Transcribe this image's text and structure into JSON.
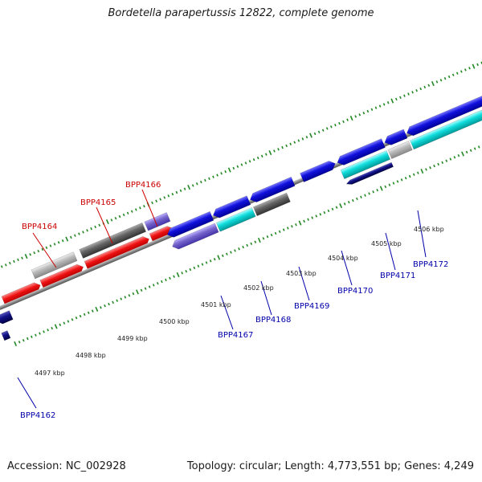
{
  "title": "Bordetella parapertussis 12822, complete genome",
  "footer": {
    "accession": "Accession: NC_002928",
    "summary": "Topology: circular; Length: 4,773,551 bp; Genes: 4,249"
  },
  "ticks": [
    "4497 kbp",
    "4498 kbp",
    "4499 kbp",
    "4500 kbp",
    "4501 kbp",
    "4502 kbp",
    "4503 kbp",
    "4504 kbp",
    "4505 kbp",
    "4506 kbp"
  ],
  "genes_forward": [
    "BPP4164",
    "BPP4165",
    "BPP4166"
  ],
  "genes_reverse": [
    "BPP4162",
    "BPP4167",
    "BPP4168",
    "BPP4169",
    "BPP4170",
    "BPP4171",
    "BPP4172"
  ],
  "colors": {
    "forward_label": "#cc0000",
    "reverse_label": "#0000aa",
    "red_gene": "#ee1111",
    "blue_gene": "#1111dd",
    "cyan_gene": "#11dddd",
    "purple_gene": "#7766cc",
    "navy_gene": "#111188",
    "gray_dark": "#666666",
    "gray_light": "#bbbbbb",
    "backbone": "#888888",
    "tick_green": "#228822"
  }
}
